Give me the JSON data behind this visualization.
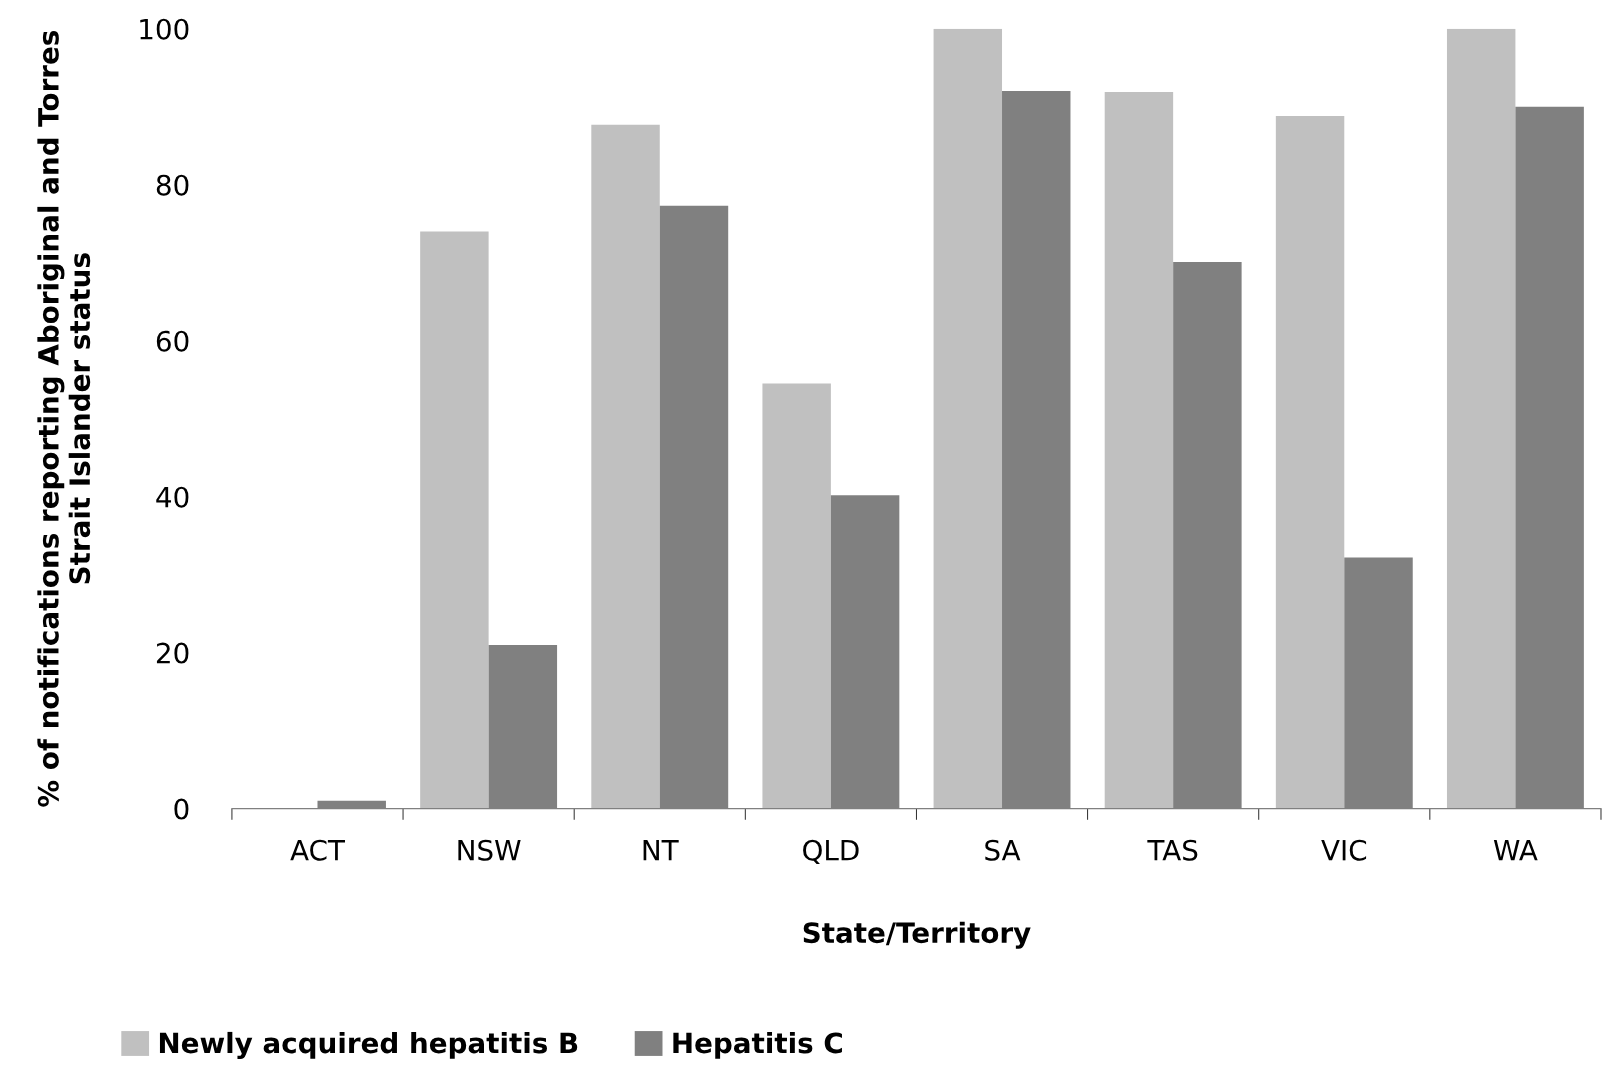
{
  "chart_data": {
    "type": "bar",
    "xlabel": "State/Territory",
    "ylabel": "% of notifications reporting Aboriginal and Torres\nStrait Islander status",
    "categories": [
      "ACT",
      "NSW",
      "NT",
      "QLD",
      "SA",
      "TAS",
      "VIC",
      "WA"
    ],
    "series": [
      {
        "name": "Newly acquired hepatitis B",
        "color": "#c0c0c0",
        "values": [
          0,
          74,
          87.7,
          54.5,
          100,
          91.9,
          88.8,
          100
        ]
      },
      {
        "name": "Hepatitis C",
        "color": "#808080",
        "values": [
          1,
          21,
          77.3,
          40.2,
          92,
          70.1,
          32.2,
          90
        ]
      }
    ],
    "ylim": [
      0,
      100
    ],
    "yticks": [
      0,
      20,
      40,
      60,
      80,
      100
    ],
    "grid": false,
    "legend": "bottom left"
  }
}
